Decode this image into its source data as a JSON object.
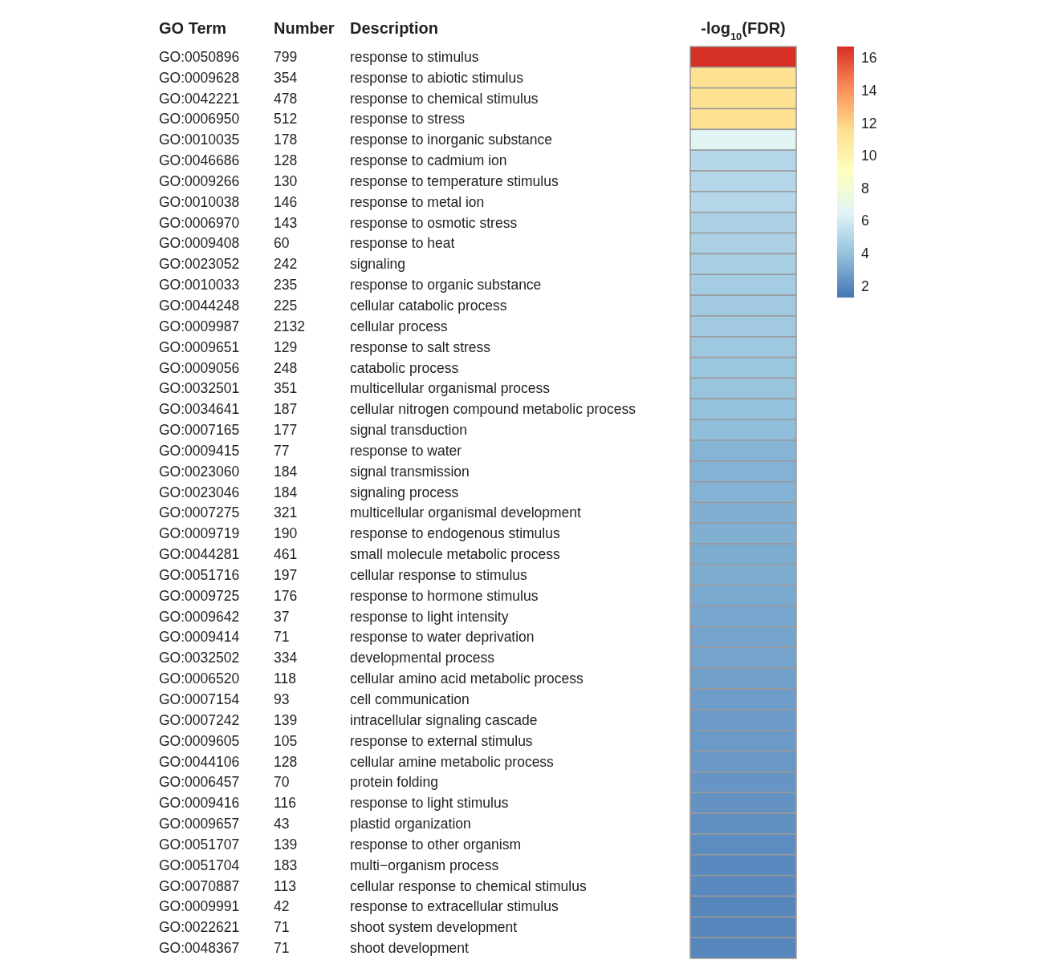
{
  "chart_data": [
    {
      "type": "other",
      "annotations": [
        "GO Term",
        "Number"
      ],
      "data_labels": true,
      "categories": [
        "GO:0050896",
        "GO:0009628",
        "GO:0042221",
        "GO:0006950",
        "GO:0010035",
        "GO:0046686",
        "GO:0009266",
        "GO:0010038",
        "GO:0006970",
        "GO:0009408",
        "GO:0023052",
        "GO:0010033",
        "GO:0044248",
        "GO:0009987",
        "GO:0009651",
        "GO:0009056",
        "GO:0032501",
        "GO:0034641",
        "GO:0007165",
        "GO:0009415",
        "GO:0023060",
        "GO:0023046",
        "GO:0007275",
        "GO:0009719",
        "GO:0044281",
        "GO:0051716",
        "GO:0009725",
        "GO:0009642",
        "GO:0009414",
        "GO:0032502",
        "GO:0006520",
        "GO:0007154",
        "GO:0007242",
        "GO:0009605",
        "GO:0044106",
        "GO:0006457",
        "GO:0009416",
        "GO:0009657",
        "GO:0051707",
        "GO:0051704",
        "GO:0070887",
        "GO:0009991",
        "GO:0022621",
        "GO:0048367"
      ],
      "values": [
        799,
        354,
        478,
        512,
        178,
        128,
        130,
        146,
        143,
        60,
        242,
        235,
        225,
        2132,
        129,
        248,
        351,
        187,
        177,
        77,
        184,
        184,
        321,
        190,
        461,
        197,
        176,
        37,
        71,
        334,
        118,
        93,
        139,
        105,
        128,
        70,
        116,
        43,
        139,
        183,
        113,
        42,
        71,
        71
      ]
    },
    {
      "type": "heatmap",
      "ylabel": "Description",
      "categories": [
        "-log$_{10}$(FDR)"
      ],
      "y_categories": [
        "response to stimulus",
        "response to abiotic stimulus",
        "response to chemical stimulus",
        "response to stress",
        "response to inorganic substance",
        "response to cadmium ion",
        "response to temperature stimulus",
        "response to metal ion",
        "response to osmotic stress",
        "response to heat",
        "signaling",
        "response to organic substance",
        "cellular catabolic process",
        "cellular process",
        "response to salt stress",
        "catabolic process",
        "multicellular organismal process",
        "cellular nitrogen compound metabolic process",
        "signal transduction",
        "response to water",
        "signal transmission",
        "signaling process",
        "multicellular organismal development",
        "response to endogenous stimulus",
        "small molecule metabolic process",
        "cellular response to stimulus",
        "response to hormone stimulus",
        "response to light intensity",
        "response to water deprivation",
        "developmental process",
        "cellular amino acid metabolic process",
        "cell communication",
        "intracellular signaling cascade",
        "response to external stimulus",
        "cellular amine metabolic process",
        "protein folding",
        "response to light stimulus",
        "plastid organization",
        "response to other organism",
        "multi−organism process",
        "cellular response to chemical stimulus",
        "response to extracellular stimulus",
        "shoot system development",
        "shoot development"
      ],
      "cells": [
        [
          16.7
        ],
        [
          11.5
        ],
        [
          11.5
        ],
        [
          11.5
        ],
        [
          6.6
        ],
        [
          5.0
        ],
        [
          5.0
        ],
        [
          5.0
        ],
        [
          4.7
        ],
        [
          4.7
        ],
        [
          4.6
        ],
        [
          4.5
        ],
        [
          4.4
        ],
        [
          4.4
        ],
        [
          4.3
        ],
        [
          4.2
        ],
        [
          4.1
        ],
        [
          4.0
        ],
        [
          3.8
        ],
        [
          3.5
        ],
        [
          3.4
        ],
        [
          3.4
        ],
        [
          3.3
        ],
        [
          3.3
        ],
        [
          3.2
        ],
        [
          3.2
        ],
        [
          3.1
        ],
        [
          3.0
        ],
        [
          2.9
        ],
        [
          2.9
        ],
        [
          2.8
        ],
        [
          2.7
        ],
        [
          2.6
        ],
        [
          2.6
        ],
        [
          2.5
        ],
        [
          2.4
        ],
        [
          2.3
        ],
        [
          2.2
        ],
        [
          2.1
        ],
        [
          2.0
        ],
        [
          2.0
        ],
        [
          1.9
        ],
        [
          1.9
        ],
        [
          1.9
        ]
      ],
      "clim": [
        1.3,
        16.7
      ],
      "cticks": [
        2,
        4,
        6,
        8,
        10,
        12,
        14,
        16
      ]
    }
  ]
}
